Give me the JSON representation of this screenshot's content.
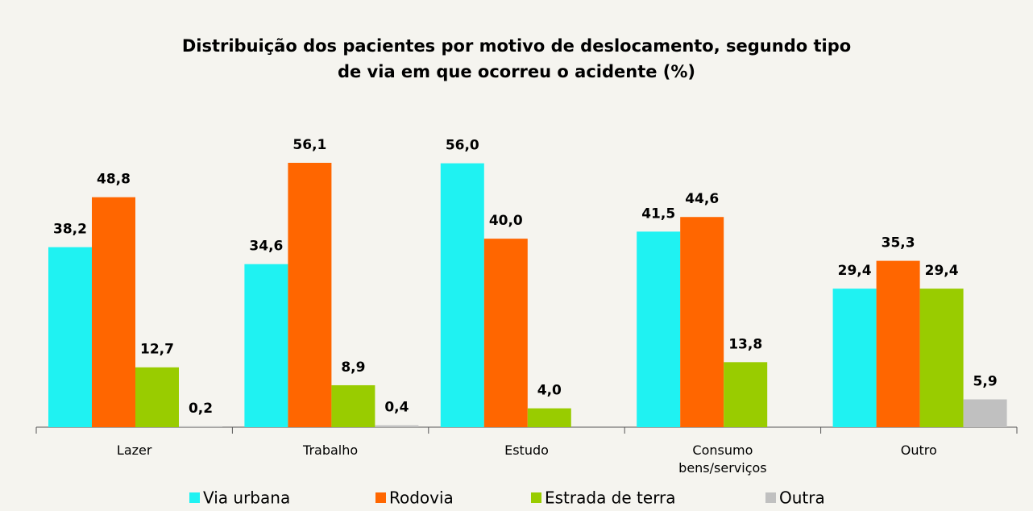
{
  "chart_data": {
    "type": "bar",
    "title": "Distribuição dos pacientes por motivo de deslocamento, segundo tipo de via em que ocorreu o acidente (%)",
    "categories": [
      "Lazer",
      "Trabalho",
      "Estudo",
      "Consumo bens/serviços",
      "Outro"
    ],
    "series": [
      {
        "name": "Via urbana",
        "color": "#1ff2f2",
        "values": [
          38.2,
          34.6,
          56.0,
          41.5,
          29.4
        ],
        "value_labels": [
          "38,2",
          "34,6",
          "56,0",
          "41,5",
          "29,4"
        ]
      },
      {
        "name": "Rodovia",
        "color": "#ff6600",
        "values": [
          48.8,
          56.1,
          40.0,
          44.6,
          35.3
        ],
        "value_labels": [
          "48,8",
          "56,1",
          "40,0",
          "44,6",
          "35,3"
        ]
      },
      {
        "name": "Estrada de terra",
        "color": "#99cc00",
        "values": [
          12.7,
          8.9,
          4.0,
          13.8,
          29.4
        ],
        "value_labels": [
          "12,7",
          "8,9",
          "4,0",
          "13,8",
          "29,4"
        ]
      },
      {
        "name": "Outra",
        "color": "#c0c0c0",
        "values": [
          0.2,
          0.4,
          null,
          null,
          5.9
        ],
        "value_labels": [
          "0,2",
          "0,4",
          null,
          null,
          "5,9"
        ]
      }
    ]
  }
}
